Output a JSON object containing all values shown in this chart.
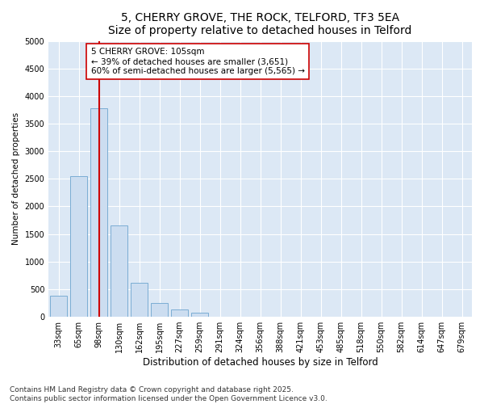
{
  "title": "5, CHERRY GROVE, THE ROCK, TELFORD, TF3 5EA",
  "subtitle": "Size of property relative to detached houses in Telford",
  "xlabel": "Distribution of detached houses by size in Telford",
  "ylabel": "Number of detached properties",
  "categories": [
    "33sqm",
    "65sqm",
    "98sqm",
    "130sqm",
    "162sqm",
    "195sqm",
    "227sqm",
    "259sqm",
    "291sqm",
    "324sqm",
    "356sqm",
    "388sqm",
    "421sqm",
    "453sqm",
    "485sqm",
    "518sqm",
    "550sqm",
    "582sqm",
    "614sqm",
    "647sqm",
    "679sqm"
  ],
  "values": [
    380,
    2550,
    3780,
    1660,
    620,
    250,
    130,
    70,
    0,
    0,
    0,
    0,
    0,
    0,
    0,
    0,
    0,
    0,
    0,
    0,
    0
  ],
  "bar_color": "#ccddf0",
  "bar_edge_color": "#7badd4",
  "vline_x": 2,
  "vline_color": "#cc0000",
  "annotation_box_text": "5 CHERRY GROVE: 105sqm\n← 39% of detached houses are smaller (3,651)\n60% of semi-detached houses are larger (5,565) →",
  "annotation_box_color": "#cc0000",
  "annotation_box_fill": "#ffffff",
  "ylim": [
    0,
    5000
  ],
  "yticks": [
    0,
    500,
    1000,
    1500,
    2000,
    2500,
    3000,
    3500,
    4000,
    4500,
    5000
  ],
  "background_color": "#dce8f5",
  "grid_color": "#ffffff",
  "fig_background": "#ffffff",
  "footer_text": "Contains HM Land Registry data © Crown copyright and database right 2025.\nContains public sector information licensed under the Open Government Licence v3.0.",
  "title_fontsize": 10,
  "subtitle_fontsize": 9,
  "ylabel_fontsize": 7.5,
  "xlabel_fontsize": 8.5,
  "tick_fontsize": 7,
  "annotation_fontsize": 7.5,
  "footer_fontsize": 6.5
}
